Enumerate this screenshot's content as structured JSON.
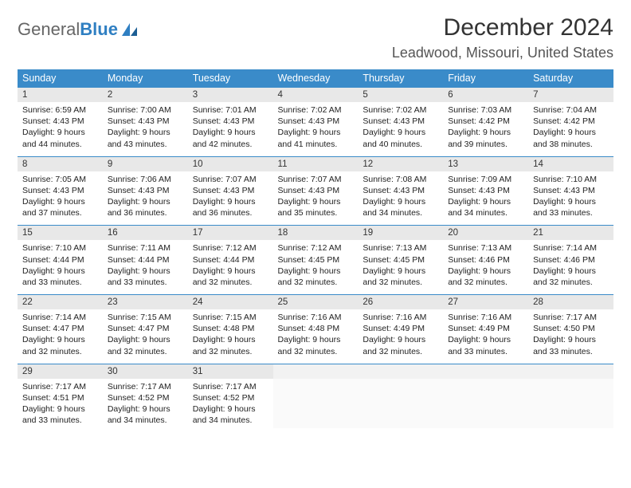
{
  "logo": {
    "text1": "General",
    "text2": "Blue"
  },
  "title": "December 2024",
  "location": "Leadwood, Missouri, United States",
  "colors": {
    "header_bg": "#3a8bc9",
    "header_text": "#ffffff",
    "daynum_bg": "#e8e8e8",
    "row_border": "#3a8bc9",
    "logo_blue": "#2f7fc2",
    "body_text": "#222222"
  },
  "day_names": [
    "Sunday",
    "Monday",
    "Tuesday",
    "Wednesday",
    "Thursday",
    "Friday",
    "Saturday"
  ],
  "weeks": [
    [
      {
        "n": "1",
        "sr": "Sunrise: 6:59 AM",
        "ss": "Sunset: 4:43 PM",
        "d1": "Daylight: 9 hours",
        "d2": "and 44 minutes."
      },
      {
        "n": "2",
        "sr": "Sunrise: 7:00 AM",
        "ss": "Sunset: 4:43 PM",
        "d1": "Daylight: 9 hours",
        "d2": "and 43 minutes."
      },
      {
        "n": "3",
        "sr": "Sunrise: 7:01 AM",
        "ss": "Sunset: 4:43 PM",
        "d1": "Daylight: 9 hours",
        "d2": "and 42 minutes."
      },
      {
        "n": "4",
        "sr": "Sunrise: 7:02 AM",
        "ss": "Sunset: 4:43 PM",
        "d1": "Daylight: 9 hours",
        "d2": "and 41 minutes."
      },
      {
        "n": "5",
        "sr": "Sunrise: 7:02 AM",
        "ss": "Sunset: 4:43 PM",
        "d1": "Daylight: 9 hours",
        "d2": "and 40 minutes."
      },
      {
        "n": "6",
        "sr": "Sunrise: 7:03 AM",
        "ss": "Sunset: 4:42 PM",
        "d1": "Daylight: 9 hours",
        "d2": "and 39 minutes."
      },
      {
        "n": "7",
        "sr": "Sunrise: 7:04 AM",
        "ss": "Sunset: 4:42 PM",
        "d1": "Daylight: 9 hours",
        "d2": "and 38 minutes."
      }
    ],
    [
      {
        "n": "8",
        "sr": "Sunrise: 7:05 AM",
        "ss": "Sunset: 4:43 PM",
        "d1": "Daylight: 9 hours",
        "d2": "and 37 minutes."
      },
      {
        "n": "9",
        "sr": "Sunrise: 7:06 AM",
        "ss": "Sunset: 4:43 PM",
        "d1": "Daylight: 9 hours",
        "d2": "and 36 minutes."
      },
      {
        "n": "10",
        "sr": "Sunrise: 7:07 AM",
        "ss": "Sunset: 4:43 PM",
        "d1": "Daylight: 9 hours",
        "d2": "and 36 minutes."
      },
      {
        "n": "11",
        "sr": "Sunrise: 7:07 AM",
        "ss": "Sunset: 4:43 PM",
        "d1": "Daylight: 9 hours",
        "d2": "and 35 minutes."
      },
      {
        "n": "12",
        "sr": "Sunrise: 7:08 AM",
        "ss": "Sunset: 4:43 PM",
        "d1": "Daylight: 9 hours",
        "d2": "and 34 minutes."
      },
      {
        "n": "13",
        "sr": "Sunrise: 7:09 AM",
        "ss": "Sunset: 4:43 PM",
        "d1": "Daylight: 9 hours",
        "d2": "and 34 minutes."
      },
      {
        "n": "14",
        "sr": "Sunrise: 7:10 AM",
        "ss": "Sunset: 4:43 PM",
        "d1": "Daylight: 9 hours",
        "d2": "and 33 minutes."
      }
    ],
    [
      {
        "n": "15",
        "sr": "Sunrise: 7:10 AM",
        "ss": "Sunset: 4:44 PM",
        "d1": "Daylight: 9 hours",
        "d2": "and 33 minutes."
      },
      {
        "n": "16",
        "sr": "Sunrise: 7:11 AM",
        "ss": "Sunset: 4:44 PM",
        "d1": "Daylight: 9 hours",
        "d2": "and 33 minutes."
      },
      {
        "n": "17",
        "sr": "Sunrise: 7:12 AM",
        "ss": "Sunset: 4:44 PM",
        "d1": "Daylight: 9 hours",
        "d2": "and 32 minutes."
      },
      {
        "n": "18",
        "sr": "Sunrise: 7:12 AM",
        "ss": "Sunset: 4:45 PM",
        "d1": "Daylight: 9 hours",
        "d2": "and 32 minutes."
      },
      {
        "n": "19",
        "sr": "Sunrise: 7:13 AM",
        "ss": "Sunset: 4:45 PM",
        "d1": "Daylight: 9 hours",
        "d2": "and 32 minutes."
      },
      {
        "n": "20",
        "sr": "Sunrise: 7:13 AM",
        "ss": "Sunset: 4:46 PM",
        "d1": "Daylight: 9 hours",
        "d2": "and 32 minutes."
      },
      {
        "n": "21",
        "sr": "Sunrise: 7:14 AM",
        "ss": "Sunset: 4:46 PM",
        "d1": "Daylight: 9 hours",
        "d2": "and 32 minutes."
      }
    ],
    [
      {
        "n": "22",
        "sr": "Sunrise: 7:14 AM",
        "ss": "Sunset: 4:47 PM",
        "d1": "Daylight: 9 hours",
        "d2": "and 32 minutes."
      },
      {
        "n": "23",
        "sr": "Sunrise: 7:15 AM",
        "ss": "Sunset: 4:47 PM",
        "d1": "Daylight: 9 hours",
        "d2": "and 32 minutes."
      },
      {
        "n": "24",
        "sr": "Sunrise: 7:15 AM",
        "ss": "Sunset: 4:48 PM",
        "d1": "Daylight: 9 hours",
        "d2": "and 32 minutes."
      },
      {
        "n": "25",
        "sr": "Sunrise: 7:16 AM",
        "ss": "Sunset: 4:48 PM",
        "d1": "Daylight: 9 hours",
        "d2": "and 32 minutes."
      },
      {
        "n": "26",
        "sr": "Sunrise: 7:16 AM",
        "ss": "Sunset: 4:49 PM",
        "d1": "Daylight: 9 hours",
        "d2": "and 32 minutes."
      },
      {
        "n": "27",
        "sr": "Sunrise: 7:16 AM",
        "ss": "Sunset: 4:49 PM",
        "d1": "Daylight: 9 hours",
        "d2": "and 33 minutes."
      },
      {
        "n": "28",
        "sr": "Sunrise: 7:17 AM",
        "ss": "Sunset: 4:50 PM",
        "d1": "Daylight: 9 hours",
        "d2": "and 33 minutes."
      }
    ],
    [
      {
        "n": "29",
        "sr": "Sunrise: 7:17 AM",
        "ss": "Sunset: 4:51 PM",
        "d1": "Daylight: 9 hours",
        "d2": "and 33 minutes."
      },
      {
        "n": "30",
        "sr": "Sunrise: 7:17 AM",
        "ss": "Sunset: 4:52 PM",
        "d1": "Daylight: 9 hours",
        "d2": "and 34 minutes."
      },
      {
        "n": "31",
        "sr": "Sunrise: 7:17 AM",
        "ss": "Sunset: 4:52 PM",
        "d1": "Daylight: 9 hours",
        "d2": "and 34 minutes."
      },
      {
        "empty": true
      },
      {
        "empty": true
      },
      {
        "empty": true
      },
      {
        "empty": true
      }
    ]
  ]
}
